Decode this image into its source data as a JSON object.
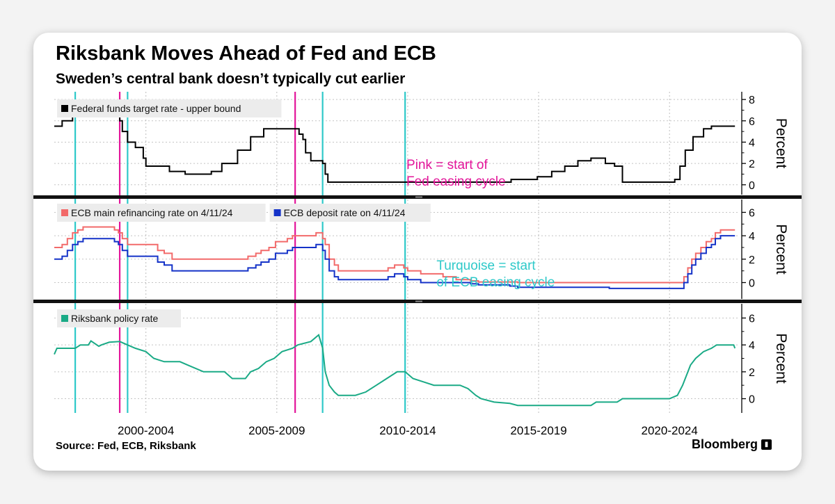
{
  "title": "Riksbank Moves Ahead of Fed and ECB",
  "subtitle": "Sweden’s central bank doesn’t typically cut earlier",
  "source": "Source: Fed, ECB, Riksbank",
  "brand": "Bloomberg",
  "brand_icon": "bloomberg-terminal-icon",
  "colors": {
    "fed": "#000000",
    "ecb_main": "#f26a6a",
    "ecb_deposit": "#1432c8",
    "riksbank": "#1aaa86",
    "pink_marker": "#e3159a",
    "turquoise_marker": "#2ec9c9"
  },
  "chart_data": {
    "type": "line",
    "x_unit": "year",
    "xlim": [
      1998.5,
      2024.6
    ],
    "x_tick_labels": [
      {
        "label": "2000-2004",
        "at": 2002.0
      },
      {
        "label": "2005-2009",
        "at": 2007.0
      },
      {
        "label": "2010-2014",
        "at": 2012.0
      },
      {
        "label": "2015-2019",
        "at": 2017.0
      },
      {
        "label": "2020-2024",
        "at": 2022.0
      }
    ],
    "fed_easing_starts": [
      2001.0,
      2007.7
    ],
    "ecb_easing_starts": [
      1999.3,
      2001.3,
      2008.75,
      2011.9
    ],
    "annotations": [
      {
        "panel": 0,
        "lines": [
          "Pink = start of",
          "Fed easing cycle"
        ],
        "x": 2011.95,
        "y": 1.5,
        "color": "#e3159a"
      },
      {
        "panel": 1,
        "lines": [
          "Turquoise = start",
          "of ECB easing cycle"
        ],
        "x": 2013.1,
        "y": 1.1,
        "color": "#2ec9c9"
      }
    ],
    "panels": [
      {
        "ylabel": "Percent",
        "ylim": [
          -0.6,
          8.4
        ],
        "yticks": [
          0,
          2,
          4,
          6,
          8
        ],
        "legend": [
          "Federal funds target rate - upper bound"
        ],
        "series": [
          {
            "name": "Federal funds target rate - upper bound",
            "color": "#000000",
            "step": true,
            "points": [
              [
                1998.5,
                5.5
              ],
              [
                1998.8,
                6.0
              ],
              [
                1999.2,
                6.5
              ],
              [
                2000.6,
                6.5
              ],
              [
                2001.0,
                6.0
              ],
              [
                2001.1,
                5.0
              ],
              [
                2001.3,
                4.0
              ],
              [
                2001.6,
                3.5
              ],
              [
                2001.9,
                2.5
              ],
              [
                2002.0,
                1.75
              ],
              [
                2002.9,
                1.25
              ],
              [
                2003.5,
                1.0
              ],
              [
                2004.5,
                1.25
              ],
              [
                2004.9,
                2.0
              ],
              [
                2005.5,
                3.25
              ],
              [
                2006.0,
                4.5
              ],
              [
                2006.5,
                5.25
              ],
              [
                2007.7,
                5.25
              ],
              [
                2007.85,
                4.75
              ],
              [
                2008.0,
                4.25
              ],
              [
                2008.1,
                3.0
              ],
              [
                2008.3,
                2.25
              ],
              [
                2008.75,
                2.0
              ],
              [
                2008.85,
                1.0
              ],
              [
                2008.95,
                0.25
              ],
              [
                2015.95,
                0.5
              ],
              [
                2016.95,
                0.75
              ],
              [
                2017.5,
                1.25
              ],
              [
                2018.0,
                1.75
              ],
              [
                2018.5,
                2.25
              ],
              [
                2019.0,
                2.5
              ],
              [
                2019.55,
                2.0
              ],
              [
                2019.9,
                1.75
              ],
              [
                2020.2,
                0.25
              ],
              [
                2022.2,
                0.5
              ],
              [
                2022.4,
                1.75
              ],
              [
                2022.6,
                3.25
              ],
              [
                2022.9,
                4.5
              ],
              [
                2023.3,
                5.25
              ],
              [
                2023.6,
                5.5
              ],
              [
                2024.5,
                5.5
              ]
            ]
          }
        ]
      },
      {
        "ylabel": "Percent",
        "ylim": [
          -1.1,
          6.8
        ],
        "yticks": [
          0,
          2,
          4,
          6
        ],
        "legend": [
          "ECB main refinancing rate on 4/11/24",
          "ECB deposit rate on 4/11/24"
        ],
        "series": [
          {
            "name": "ECB main refinancing rate on 4/11/24",
            "color": "#f26a6a",
            "step": true,
            "points": [
              [
                1998.5,
                3.0
              ],
              [
                1998.8,
                3.25
              ],
              [
                1999.0,
                3.75
              ],
              [
                1999.2,
                4.25
              ],
              [
                1999.4,
                4.5
              ],
              [
                1999.6,
                4.75
              ],
              [
                2000.5,
                4.75
              ],
              [
                2000.8,
                4.5
              ],
              [
                2000.95,
                4.25
              ],
              [
                2001.1,
                3.75
              ],
              [
                2001.3,
                3.25
              ],
              [
                2002.3,
                3.25
              ],
              [
                2002.45,
                2.75
              ],
              [
                2002.7,
                2.5
              ],
              [
                2003.0,
                2.0
              ],
              [
                2005.9,
                2.25
              ],
              [
                2006.2,
                2.5
              ],
              [
                2006.4,
                2.75
              ],
              [
                2006.7,
                3.0
              ],
              [
                2006.95,
                3.5
              ],
              [
                2007.4,
                3.75
              ],
              [
                2007.6,
                4.0
              ],
              [
                2008.5,
                4.25
              ],
              [
                2008.75,
                3.75
              ],
              [
                2008.85,
                3.25
              ],
              [
                2009.0,
                2.0
              ],
              [
                2009.2,
                1.5
              ],
              [
                2009.35,
                1.0
              ],
              [
                2011.25,
                1.25
              ],
              [
                2011.5,
                1.5
              ],
              [
                2011.85,
                1.25
              ],
              [
                2012.0,
                1.0
              ],
              [
                2012.5,
                0.75
              ],
              [
                2013.35,
                0.5
              ],
              [
                2013.85,
                0.25
              ],
              [
                2014.4,
                0.15
              ],
              [
                2014.7,
                0.05
              ],
              [
                2016.2,
                0.0
              ],
              [
                2022.55,
                0.5
              ],
              [
                2022.7,
                1.25
              ],
              [
                2022.85,
                2.0
              ],
              [
                2023.0,
                2.5
              ],
              [
                2023.2,
                3.0
              ],
              [
                2023.4,
                3.5
              ],
              [
                2023.6,
                3.75
              ],
              [
                2023.75,
                4.25
              ],
              [
                2023.95,
                4.5
              ],
              [
                2024.5,
                4.5
              ]
            ]
          },
          {
            "name": "ECB deposit rate on 4/11/24",
            "color": "#1432c8",
            "step": true,
            "points": [
              [
                1998.5,
                2.0
              ],
              [
                1998.8,
                2.25
              ],
              [
                1999.0,
                2.75
              ],
              [
                1999.2,
                3.25
              ],
              [
                1999.4,
                3.5
              ],
              [
                1999.6,
                3.75
              ],
              [
                2000.5,
                3.75
              ],
              [
                2000.8,
                3.5
              ],
              [
                2000.95,
                3.25
              ],
              [
                2001.1,
                2.75
              ],
              [
                2001.3,
                2.25
              ],
              [
                2002.3,
                2.25
              ],
              [
                2002.45,
                1.75
              ],
              [
                2002.7,
                1.5
              ],
              [
                2003.0,
                1.0
              ],
              [
                2005.9,
                1.25
              ],
              [
                2006.2,
                1.5
              ],
              [
                2006.4,
                1.75
              ],
              [
                2006.7,
                2.0
              ],
              [
                2006.95,
                2.5
              ],
              [
                2007.4,
                2.75
              ],
              [
                2007.6,
                3.0
              ],
              [
                2008.5,
                3.25
              ],
              [
                2008.75,
                2.75
              ],
              [
                2008.85,
                2.0
              ],
              [
                2009.0,
                1.0
              ],
              [
                2009.2,
                0.5
              ],
              [
                2009.35,
                0.25
              ],
              [
                2011.25,
                0.5
              ],
              [
                2011.5,
                0.75
              ],
              [
                2011.85,
                0.5
              ],
              [
                2012.0,
                0.25
              ],
              [
                2012.5,
                0.0
              ],
              [
                2014.4,
                -0.1
              ],
              [
                2014.7,
                -0.2
              ],
              [
                2015.9,
                -0.3
              ],
              [
                2016.2,
                -0.4
              ],
              [
                2019.7,
                -0.5
              ],
              [
                2022.55,
                0.0
              ],
              [
                2022.7,
                0.75
              ],
              [
                2022.85,
                1.5
              ],
              [
                2023.0,
                2.0
              ],
              [
                2023.2,
                2.5
              ],
              [
                2023.4,
                3.0
              ],
              [
                2023.6,
                3.25
              ],
              [
                2023.75,
                3.75
              ],
              [
                2023.95,
                4.0
              ],
              [
                2024.5,
                4.0
              ]
            ]
          }
        ]
      },
      {
        "ylabel": "Percent",
        "ylim": [
          -0.8,
          6.8
        ],
        "yticks": [
          0,
          2,
          4,
          6
        ],
        "legend": [
          "Riksbank policy rate"
        ],
        "series": [
          {
            "name": "Riksbank policy rate",
            "color": "#1aaa86",
            "step": false,
            "points": [
              [
                1998.5,
                3.3
              ],
              [
                1998.6,
                3.75
              ],
              [
                1999.3,
                3.75
              ],
              [
                1999.5,
                4.0
              ],
              [
                1999.8,
                4.0
              ],
              [
                1999.9,
                4.3
              ],
              [
                2000.2,
                3.9
              ],
              [
                2000.3,
                4.0
              ],
              [
                2000.6,
                4.2
              ],
              [
                2001.0,
                4.25
              ],
              [
                2001.3,
                4.0
              ],
              [
                2001.6,
                3.75
              ],
              [
                2002.0,
                3.5
              ],
              [
                2002.3,
                3.0
              ],
              [
                2002.7,
                2.75
              ],
              [
                2003.3,
                2.75
              ],
              [
                2003.6,
                2.5
              ],
              [
                2004.2,
                2.0
              ],
              [
                2005.0,
                2.0
              ],
              [
                2005.3,
                1.5
              ],
              [
                2005.8,
                1.5
              ],
              [
                2006.0,
                2.0
              ],
              [
                2006.3,
                2.25
              ],
              [
                2006.6,
                2.75
              ],
              [
                2006.9,
                3.0
              ],
              [
                2007.2,
                3.5
              ],
              [
                2007.6,
                3.75
              ],
              [
                2007.8,
                4.0
              ],
              [
                2008.3,
                4.25
              ],
              [
                2008.6,
                4.75
              ],
              [
                2008.75,
                3.75
              ],
              [
                2008.85,
                2.0
              ],
              [
                2009.0,
                1.0
              ],
              [
                2009.2,
                0.5
              ],
              [
                2009.35,
                0.25
              ],
              [
                2010.0,
                0.25
              ],
              [
                2010.4,
                0.5
              ],
              [
                2010.8,
                1.0
              ],
              [
                2011.2,
                1.5
              ],
              [
                2011.6,
                2.0
              ],
              [
                2011.9,
                2.0
              ],
              [
                2012.2,
                1.5
              ],
              [
                2012.6,
                1.25
              ],
              [
                2013.0,
                1.0
              ],
              [
                2014.0,
                1.0
              ],
              [
                2014.3,
                0.75
              ],
              [
                2014.6,
                0.25
              ],
              [
                2014.8,
                0.0
              ],
              [
                2015.3,
                -0.25
              ],
              [
                2015.9,
                -0.35
              ],
              [
                2016.2,
                -0.5
              ],
              [
                2019.0,
                -0.5
              ],
              [
                2019.2,
                -0.25
              ],
              [
                2020.0,
                -0.25
              ],
              [
                2020.2,
                0.0
              ],
              [
                2022.0,
                0.0
              ],
              [
                2022.3,
                0.25
              ],
              [
                2022.5,
                1.0
              ],
              [
                2022.8,
                2.5
              ],
              [
                2023.0,
                3.0
              ],
              [
                2023.3,
                3.5
              ],
              [
                2023.6,
                3.75
              ],
              [
                2023.8,
                4.0
              ],
              [
                2024.45,
                4.0
              ],
              [
                2024.5,
                3.75
              ]
            ]
          }
        ]
      }
    ]
  }
}
